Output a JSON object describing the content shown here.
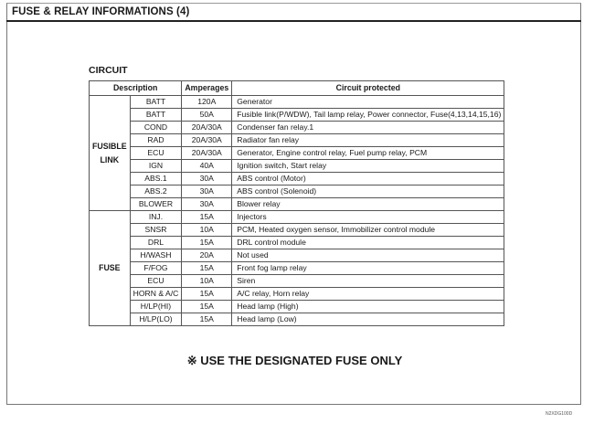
{
  "title": "FUSE & RELAY INFORMATIONS (4)",
  "section": "CIRCUIT",
  "headers": {
    "description": "Description",
    "amperages": "Amperages",
    "circuit": "Circuit protected"
  },
  "groups": [
    {
      "label": "FUSIBLE LINK",
      "rows": [
        {
          "desc": "BATT",
          "amp": "120A",
          "circuit": "Generator"
        },
        {
          "desc": "BATT",
          "amp": "50A",
          "circuit": "Fusible link(P/WDW), Tail lamp relay, Power connector, Fuse(4,13,14,15,16)"
        },
        {
          "desc": "COND",
          "amp": "20A/30A",
          "circuit": "Condenser fan relay.1"
        },
        {
          "desc": "RAD",
          "amp": "20A/30A",
          "circuit": "Radiator fan relay"
        },
        {
          "desc": "ECU",
          "amp": "20A/30A",
          "circuit": "Generator, Engine control relay, Fuel pump relay, PCM"
        },
        {
          "desc": "IGN",
          "amp": "40A",
          "circuit": "Ignition switch, Start relay"
        },
        {
          "desc": "ABS.1",
          "amp": "30A",
          "circuit": "ABS control (Motor)"
        },
        {
          "desc": "ABS.2",
          "amp": "30A",
          "circuit": "ABS control (Solenoid)"
        },
        {
          "desc": "BLOWER",
          "amp": "30A",
          "circuit": "Blower relay"
        }
      ]
    },
    {
      "label": "FUSE",
      "rows": [
        {
          "desc": "INJ.",
          "amp": "15A",
          "circuit": "Injectors"
        },
        {
          "desc": "SNSR",
          "amp": "10A",
          "circuit": "PCM, Heated oxygen sensor, Immobilizer control module"
        },
        {
          "desc": "DRL",
          "amp": "15A",
          "circuit": "DRL control module"
        },
        {
          "desc": "H/WASH",
          "amp": "20A",
          "circuit": "Not used"
        },
        {
          "desc": "F/FOG",
          "amp": "15A",
          "circuit": "Front fog lamp relay"
        },
        {
          "desc": "ECU",
          "amp": "10A",
          "circuit": "Siren"
        },
        {
          "desc": "HORN & A/C",
          "amp": "15A",
          "circuit": "A/C relay, Horn relay"
        },
        {
          "desc": "H/LP(HI)",
          "amp": "15A",
          "circuit": "Head lamp (High)"
        },
        {
          "desc": "H/LP(LO)",
          "amp": "15A",
          "circuit": "Head lamp (Low)"
        }
      ]
    }
  ],
  "note": "※ USE THE DESIGNATED FUSE ONLY",
  "code": "N2XDG100D"
}
